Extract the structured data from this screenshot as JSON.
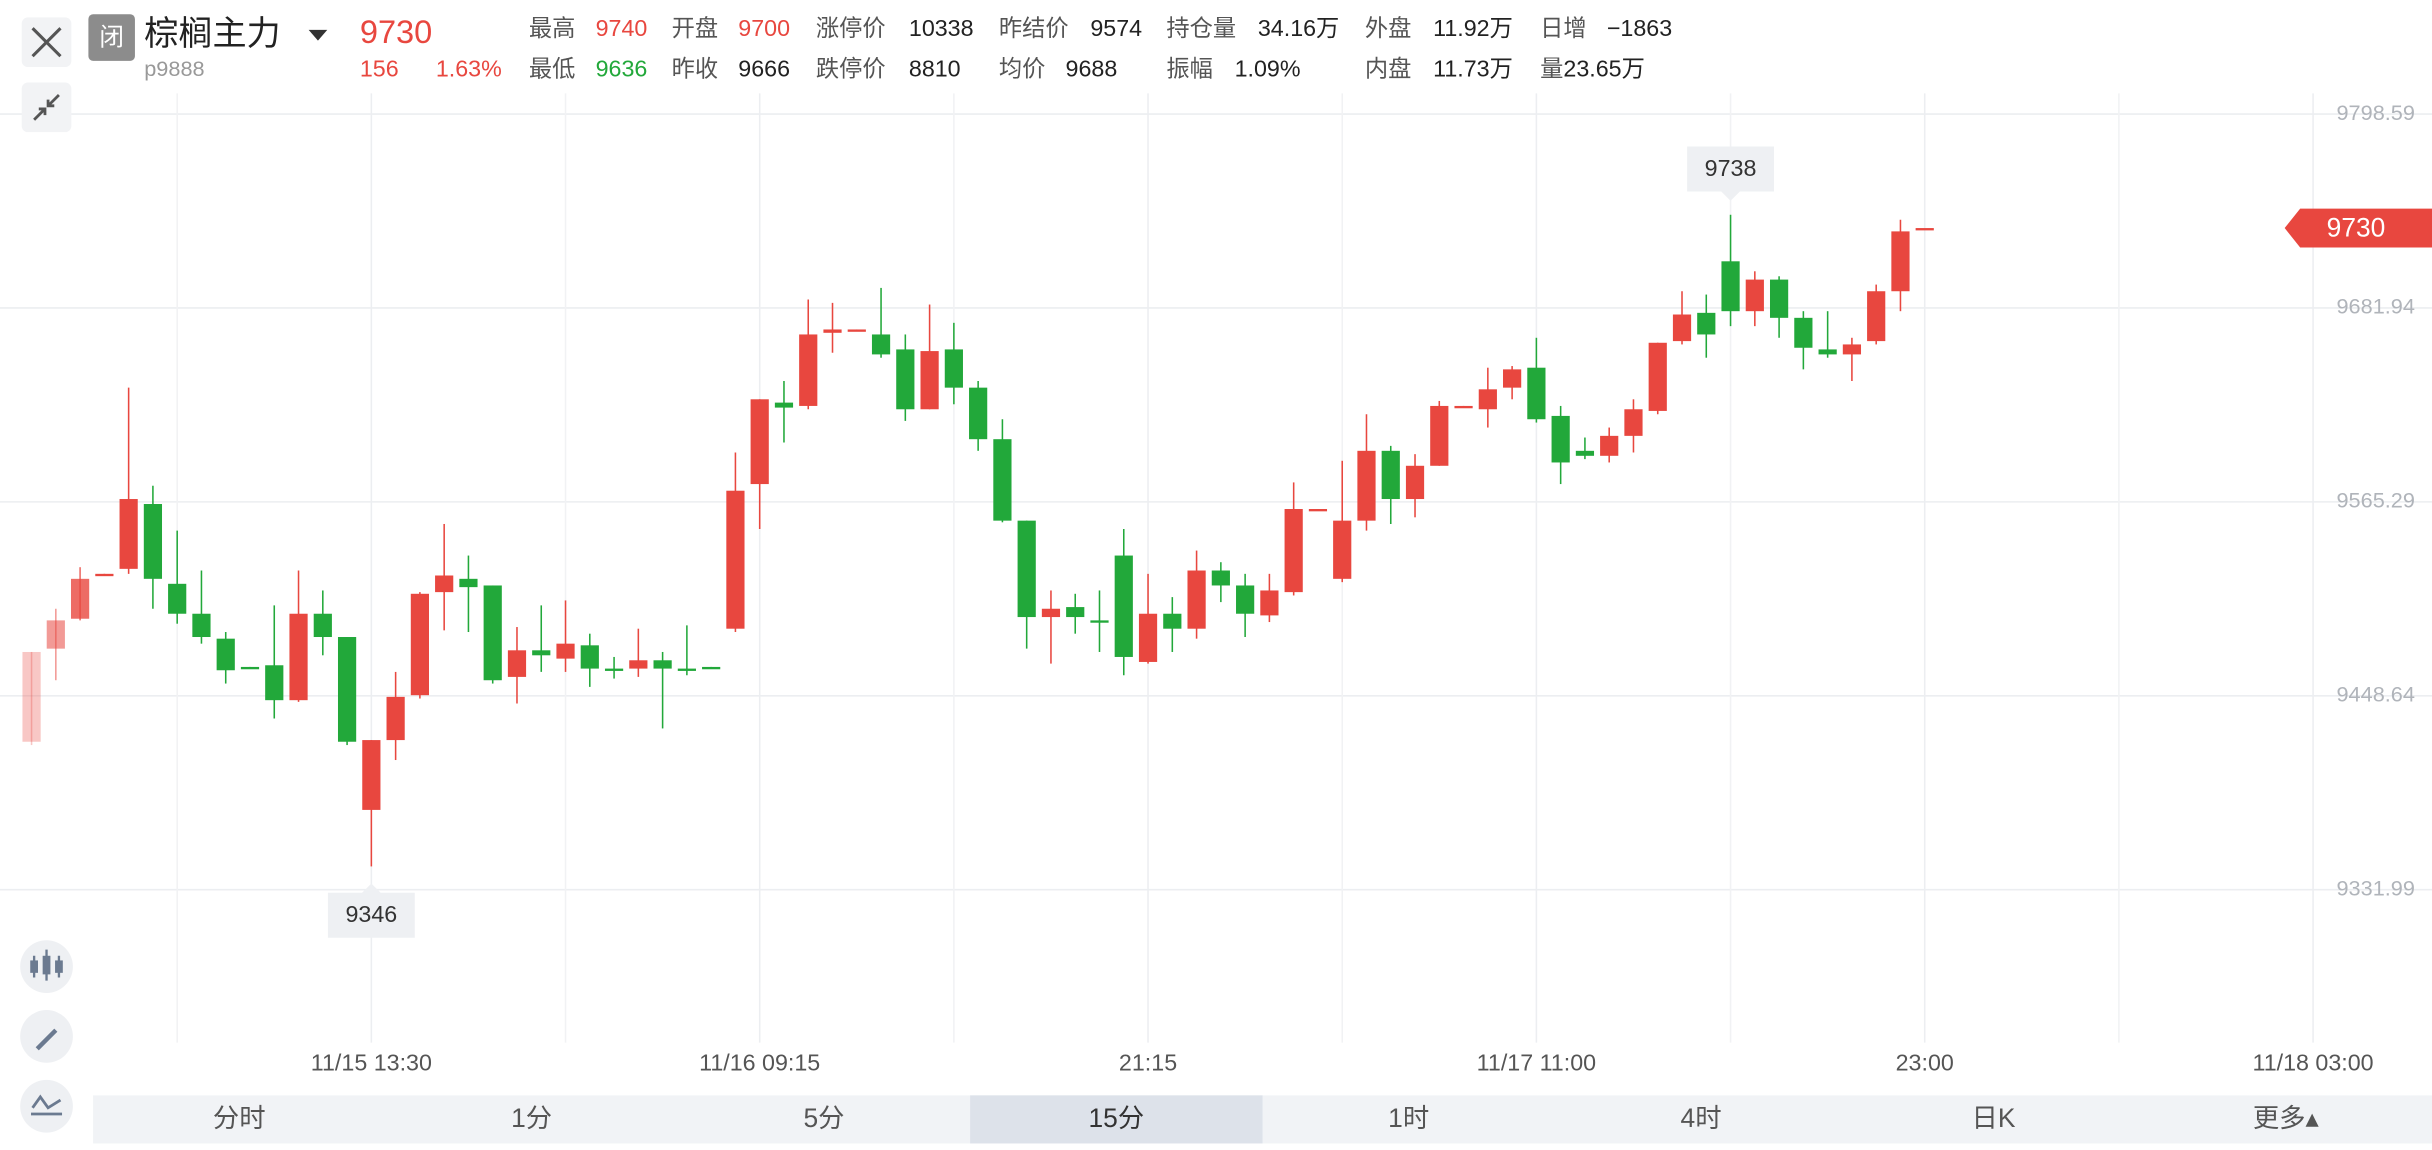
{
  "header": {
    "status": "闭",
    "name": "棕榈主力",
    "code": "p9888",
    "last": "9730",
    "change": "156",
    "change_pct": "1.63%",
    "stats": [
      [
        {
          "label": "最高",
          "value": "9740",
          "color": "#e8473f"
        },
        {
          "label": "开盘",
          "value": "9700",
          "color": "#e8473f"
        },
        {
          "label": "涨停价",
          "value": "10338"
        },
        {
          "label": "昨结价",
          "value": "9574"
        },
        {
          "label": "持仓量",
          "value": "34.16万"
        },
        {
          "label": "外盘",
          "value": "11.92万"
        },
        {
          "label": "日增",
          "value": "−1863"
        }
      ],
      [
        {
          "label": "最低",
          "value": "9636",
          "color": "#22a83a"
        },
        {
          "label": "昨收",
          "value": "9666"
        },
        {
          "label": "跌停价",
          "value": "8810"
        },
        {
          "label": "均价",
          "value": "9688"
        },
        {
          "label": "振幅",
          "value": "1.09%"
        },
        {
          "label": "内盘",
          "value": "11.73万"
        },
        {
          "label": "量",
          "value": "23.65万"
        }
      ]
    ]
  },
  "tabs": {
    "items": [
      "分时",
      "1分",
      "5分",
      "15分",
      "1时",
      "4时",
      "日K",
      "更多▴"
    ],
    "selected": 3
  },
  "chart_data": {
    "type": "candlestick",
    "up_color": "#e8473f",
    "down_color": "#22a83a",
    "grid": true,
    "ylim": [
      9240,
      9811
    ],
    "yticks": [
      9798.59,
      9681.94,
      9565.29,
      9448.64,
      9331.99
    ],
    "xlim": [
      -1.3,
      98.9
    ],
    "xticks": [
      {
        "value": 14,
        "label": "11/15 13:30"
      },
      {
        "value": 30,
        "label": "11/16 09:15"
      },
      {
        "value": 46,
        "label": "21:15"
      },
      {
        "value": 62,
        "label": "11/17 11:00"
      },
      {
        "value": 78,
        "label": "23:00"
      },
      {
        "value": 94,
        "label": "11/18 03:00"
      }
    ],
    "max_index": 70,
    "min_index": 14,
    "candles": [
      {
        "open": 9421,
        "high": 9475,
        "low": 9419,
        "close": 9475
      },
      {
        "open": 9477,
        "high": 9501,
        "low": 9458,
        "close": 9494
      },
      {
        "open": 9495,
        "high": 9526,
        "low": 9494,
        "close": 9519
      },
      {
        "open": 9521,
        "high": 9522,
        "low": 9521,
        "close": 9522
      },
      {
        "open": 9525,
        "high": 9634,
        "low": 9522,
        "close": 9567
      },
      {
        "open": 9564,
        "high": 9575,
        "low": 9501,
        "close": 9519
      },
      {
        "open": 9516,
        "high": 9548,
        "low": 9492,
        "close": 9498
      },
      {
        "open": 9498,
        "high": 9524,
        "low": 9480,
        "close": 9484
      },
      {
        "open": 9483,
        "high": 9487,
        "low": 9456,
        "close": 9464
      },
      {
        "open": 9466,
        "high": 9466,
        "low": 9465,
        "close": 9465
      },
      {
        "open": 9467,
        "high": 9503,
        "low": 9435,
        "close": 9446
      },
      {
        "open": 9446,
        "high": 9524,
        "low": 9445,
        "close": 9498
      },
      {
        "open": 9498,
        "high": 9512,
        "low": 9473,
        "close": 9484
      },
      {
        "open": 9484,
        "high": 9484,
        "low": 9419,
        "close": 9421
      },
      {
        "open": 9380,
        "high": 9422,
        "low": 9346,
        "close": 9422
      },
      {
        "open": 9422,
        "high": 9463,
        "low": 9410,
        "close": 9448
      },
      {
        "open": 9449,
        "high": 9511,
        "low": 9447,
        "close": 9510
      },
      {
        "open": 9511,
        "high": 9552,
        "low": 9488,
        "close": 9521
      },
      {
        "open": 9519,
        "high": 9533,
        "low": 9487,
        "close": 9514
      },
      {
        "open": 9515,
        "high": 9515,
        "low": 9456,
        "close": 9458
      },
      {
        "open": 9460,
        "high": 9490,
        "low": 9444,
        "close": 9476
      },
      {
        "open": 9476,
        "high": 9503,
        "low": 9463,
        "close": 9473
      },
      {
        "open": 9471,
        "high": 9506,
        "low": 9463,
        "close": 9480
      },
      {
        "open": 9479,
        "high": 9486,
        "low": 9454,
        "close": 9465
      },
      {
        "open": 9465,
        "high": 9472,
        "low": 9459,
        "close": 9464
      },
      {
        "open": 9465,
        "high": 9489,
        "low": 9460,
        "close": 9470
      },
      {
        "open": 9470,
        "high": 9475,
        "low": 9429,
        "close": 9465
      },
      {
        "open": 9465,
        "high": 9491,
        "low": 9461,
        "close": 9464
      },
      {
        "open": 9466,
        "high": 9466,
        "low": 9465,
        "close": 9465
      },
      {
        "open": 9489,
        "high": 9595,
        "low": 9487,
        "close": 9572
      },
      {
        "open": 9576,
        "high": 9627,
        "low": 9549,
        "close": 9627
      },
      {
        "open": 9625,
        "high": 9638,
        "low": 9601,
        "close": 9622
      },
      {
        "open": 9623,
        "high": 9687,
        "low": 9621,
        "close": 9666
      },
      {
        "open": 9667,
        "high": 9685,
        "low": 9655,
        "close": 9669
      },
      {
        "open": 9668,
        "high": 9669,
        "low": 9668,
        "close": 9669
      },
      {
        "open": 9666,
        "high": 9694,
        "low": 9652,
        "close": 9654
      },
      {
        "open": 9657,
        "high": 9666,
        "low": 9614,
        "close": 9621
      },
      {
        "open": 9621,
        "high": 9684,
        "low": 9621,
        "close": 9656
      },
      {
        "open": 9657,
        "high": 9673,
        "low": 9624,
        "close": 9634
      },
      {
        "open": 9634,
        "high": 9638,
        "low": 9596,
        "close": 9603
      },
      {
        "open": 9603,
        "high": 9615,
        "low": 9553,
        "close": 9554
      },
      {
        "open": 9554,
        "high": 9554,
        "low": 9477,
        "close": 9496
      },
      {
        "open": 9496,
        "high": 9512,
        "low": 9468,
        "close": 9501
      },
      {
        "open": 9502,
        "high": 9510,
        "low": 9486,
        "close": 9496
      },
      {
        "open": 9494,
        "high": 9512,
        "low": 9475,
        "close": 9493
      },
      {
        "open": 9533,
        "high": 9549,
        "low": 9461,
        "close": 9472
      },
      {
        "open": 9469,
        "high": 9522,
        "low": 9468,
        "close": 9498
      },
      {
        "open": 9498,
        "high": 9508,
        "low": 9475,
        "close": 9489
      },
      {
        "open": 9489,
        "high": 9536,
        "low": 9483,
        "close": 9524
      },
      {
        "open": 9524,
        "high": 9529,
        "low": 9505,
        "close": 9515
      },
      {
        "open": 9515,
        "high": 9522,
        "low": 9484,
        "close": 9498
      },
      {
        "open": 9497,
        "high": 9522,
        "low": 9493,
        "close": 9512
      },
      {
        "open": 9511,
        "high": 9577,
        "low": 9509,
        "close": 9561
      },
      {
        "open": 9560,
        "high": 9561,
        "low": 9560,
        "close": 9561
      },
      {
        "open": 9519,
        "high": 9590,
        "low": 9517,
        "close": 9554
      },
      {
        "open": 9554,
        "high": 9618,
        "low": 9548,
        "close": 9596
      },
      {
        "open": 9596,
        "high": 9599,
        "low": 9552,
        "close": 9567
      },
      {
        "open": 9567,
        "high": 9594,
        "low": 9556,
        "close": 9587
      },
      {
        "open": 9587,
        "high": 9626,
        "low": 9587,
        "close": 9623
      },
      {
        "open": 9622,
        "high": 9623,
        "low": 9622,
        "close": 9623
      },
      {
        "open": 9621,
        "high": 9646,
        "low": 9610,
        "close": 9633
      },
      {
        "open": 9634,
        "high": 9647,
        "low": 9627,
        "close": 9645
      },
      {
        "open": 9646,
        "high": 9664,
        "low": 9613,
        "close": 9615
      },
      {
        "open": 9617,
        "high": 9623,
        "low": 9576,
        "close": 9589
      },
      {
        "open": 9596,
        "high": 9604,
        "low": 9591,
        "close": 9593
      },
      {
        "open": 9593,
        "high": 9610,
        "low": 9589,
        "close": 9605
      },
      {
        "open": 9605,
        "high": 9627,
        "low": 9595,
        "close": 9621
      },
      {
        "open": 9620,
        "high": 9661,
        "low": 9618,
        "close": 9661
      },
      {
        "open": 9662,
        "high": 9692,
        "low": 9660,
        "close": 9678
      },
      {
        "open": 9679,
        "high": 9690,
        "low": 9652,
        "close": 9666
      },
      {
        "open": 9710,
        "high": 9738,
        "low": 9671,
        "close": 9680
      },
      {
        "open": 9680,
        "high": 9704,
        "low": 9671,
        "close": 9699
      },
      {
        "open": 9699,
        "high": 9701,
        "low": 9664,
        "close": 9676
      },
      {
        "open": 9676,
        "high": 9680,
        "low": 9645,
        "close": 9658
      },
      {
        "open": 9657,
        "high": 9680,
        "low": 9652,
        "close": 9654
      },
      {
        "open": 9654,
        "high": 9664,
        "low": 9638,
        "close": 9660
      },
      {
        "open": 9662,
        "high": 9696,
        "low": 9660,
        "close": 9692
      },
      {
        "open": 9692,
        "high": 9735,
        "low": 9680,
        "close": 9728
      },
      {
        "open": 9730,
        "high": 9730,
        "low": 9730,
        "close": 9730
      }
    ]
  }
}
